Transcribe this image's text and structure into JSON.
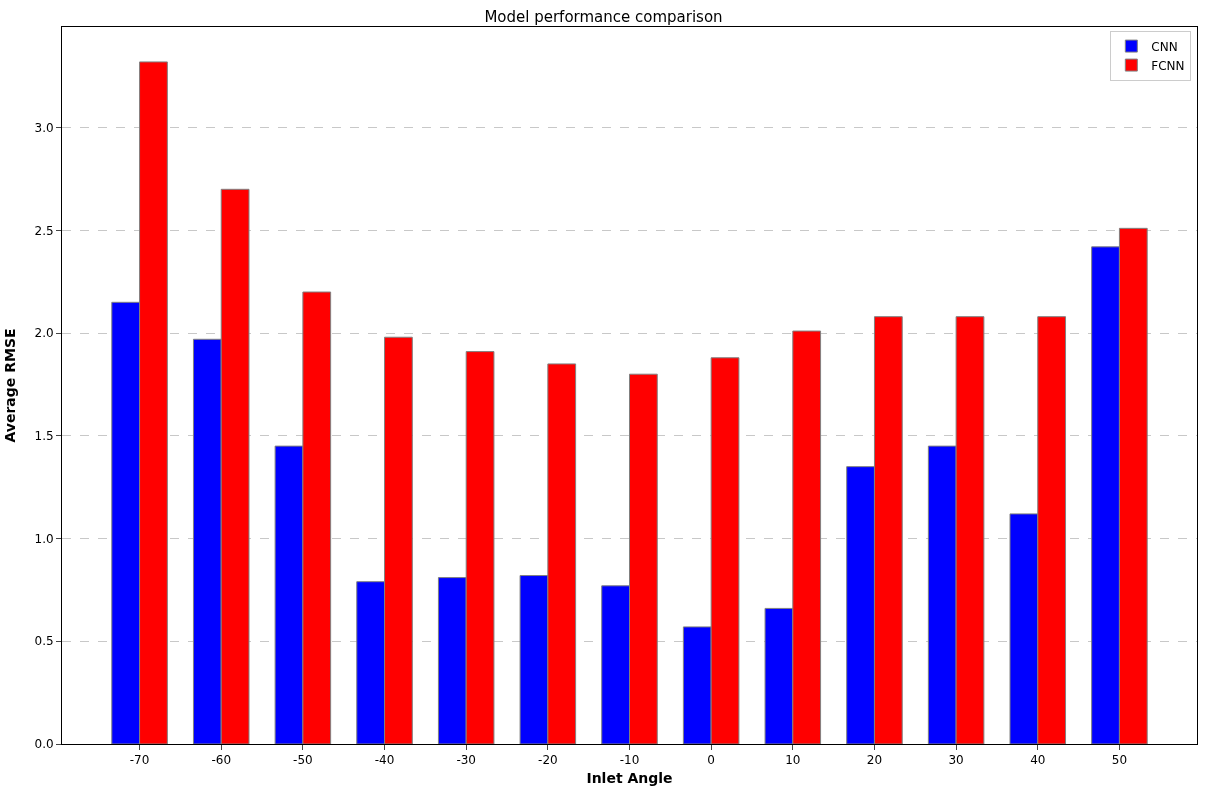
{
  "chart_data": {
    "type": "bar",
    "title": "Model performance comparison",
    "xlabel": "Inlet Angle",
    "ylabel": "Average RMSE",
    "categories": [
      "-70",
      "-60",
      "-50",
      "-40",
      "-30",
      "-20",
      "-10",
      "0",
      "10",
      "20",
      "30",
      "40",
      "50"
    ],
    "series": [
      {
        "name": "CNN",
        "color": "#0000ff",
        "values": [
          2.15,
          1.97,
          1.45,
          0.79,
          0.81,
          0.82,
          0.77,
          0.57,
          0.66,
          1.35,
          1.45,
          1.12,
          2.42
        ]
      },
      {
        "name": "FCNN",
        "color": "#ff0000",
        "values": [
          3.32,
          2.7,
          2.2,
          1.98,
          1.91,
          1.85,
          1.8,
          1.88,
          2.01,
          2.08,
          2.08,
          2.08,
          2.51
        ]
      }
    ],
    "ylim": [
      0,
      3.49
    ],
    "yticks": [
      {
        "value": 0,
        "label": "0.0"
      },
      {
        "value": 0.5,
        "label": "0.5"
      },
      {
        "value": 1,
        "label": "1.0"
      },
      {
        "value": 1.5,
        "label": "1.5"
      },
      {
        "value": 2,
        "label": "2.0"
      },
      {
        "value": 2.5,
        "label": "2.5"
      },
      {
        "value": 3,
        "label": "3.0"
      }
    ],
    "grid": "y",
    "legend": "top right"
  }
}
